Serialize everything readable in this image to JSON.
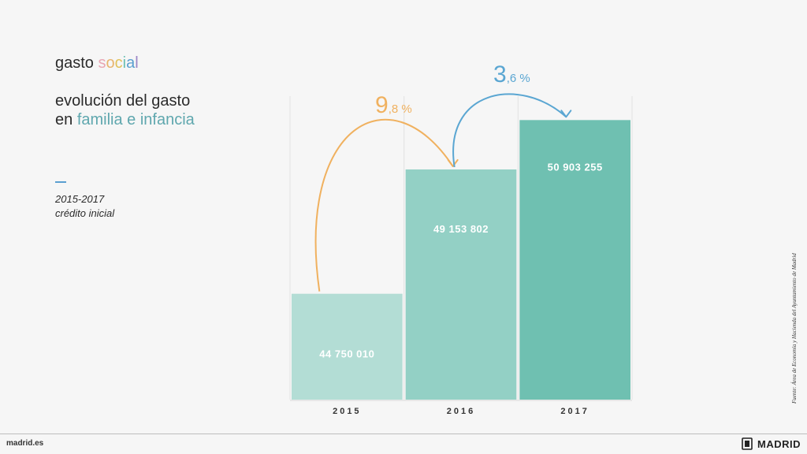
{
  "header": {
    "title_parts": [
      {
        "text": "gasto ",
        "color": "#2b2b2b"
      },
      {
        "text": "s",
        "color": "#e9a6b3"
      },
      {
        "text": "o",
        "color": "#e8b46e"
      },
      {
        "text": "c",
        "color": "#e0c15a"
      },
      {
        "text": "i",
        "color": "#6cc0b4"
      },
      {
        "text": "a",
        "color": "#5a9fd0"
      },
      {
        "text": "l",
        "color": "#9b86c6"
      }
    ],
    "subtitle_line1": "evolución del gasto",
    "subtitle_line2_prefix": "en ",
    "subtitle_line2_highlight": "familia e infancia",
    "period": "2015-2017",
    "period_note": "crédito inicial"
  },
  "chart_data": {
    "type": "bar",
    "categories": [
      "2015",
      "2016",
      "2017"
    ],
    "values": [
      44750010,
      49153802,
      50903255
    ],
    "value_labels": [
      "44 750 010",
      "49 153 802",
      "50 903 255"
    ],
    "bar_colors": [
      "#b3ddd5",
      "#93d0c5",
      "#6fc0b1"
    ],
    "annotations": [
      {
        "from": "2015",
        "to": "2016",
        "big": "9",
        "small": ",8 %",
        "color": "#f0b15f"
      },
      {
        "from": "2016",
        "to": "2017",
        "big": "3",
        "small": ",6 %",
        "color": "#5aa6d2"
      }
    ]
  },
  "source": "Fuente: Área de Economía y Hacienda del Ayuntamiento de Madrid",
  "footer": {
    "site": "madrid.es",
    "brand": "MADRID"
  }
}
